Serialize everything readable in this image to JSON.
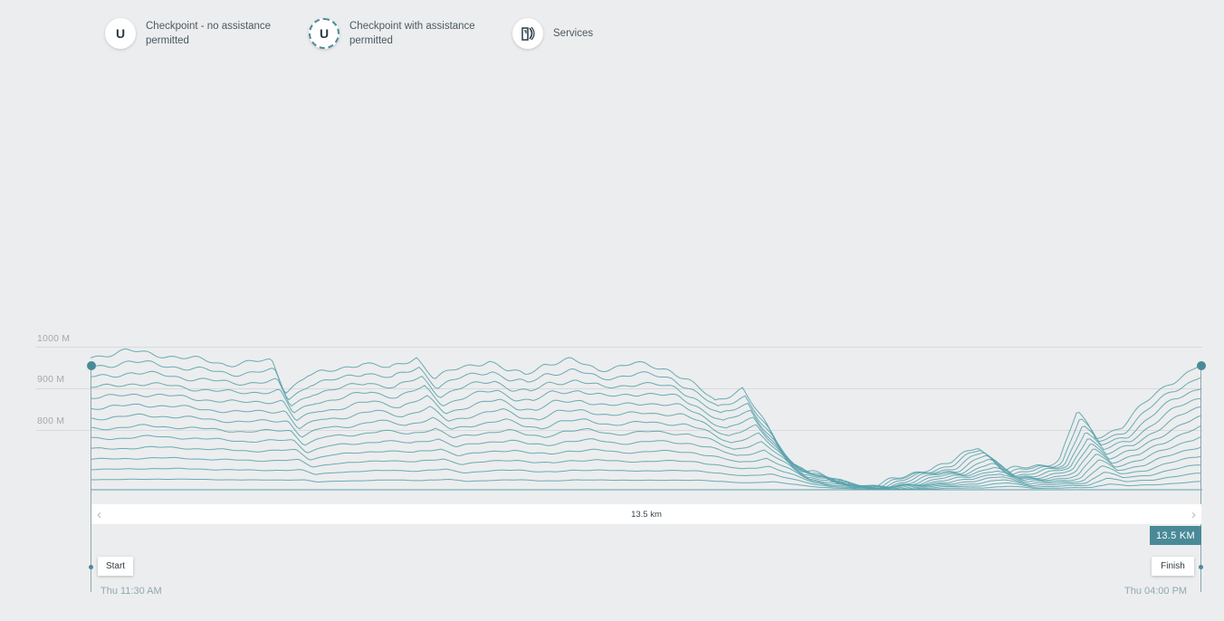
{
  "legend": [
    {
      "icon": "U",
      "icon_name": "checkpoint-icon",
      "label": "Checkpoint - no assistance permitted"
    },
    {
      "icon": "U",
      "icon_name": "checkpoint-assisted-icon",
      "label": "Checkpoint with assistance permitted"
    },
    {
      "icon_name": "services-icon",
      "label": "Services"
    }
  ],
  "elevation": {
    "y_labels": [
      "1000 M",
      "900 M",
      "800 M"
    ],
    "line_color": "#5ba3ad",
    "accent_color": "#4a8a98"
  },
  "scrollbar": {
    "label": "13.5 km"
  },
  "distance_badge": "13.5 KM",
  "start": {
    "label": "Start",
    "time": "Thu 11:30 AM"
  },
  "finish": {
    "label": "Finish",
    "time": "Thu 04:00 PM"
  }
}
